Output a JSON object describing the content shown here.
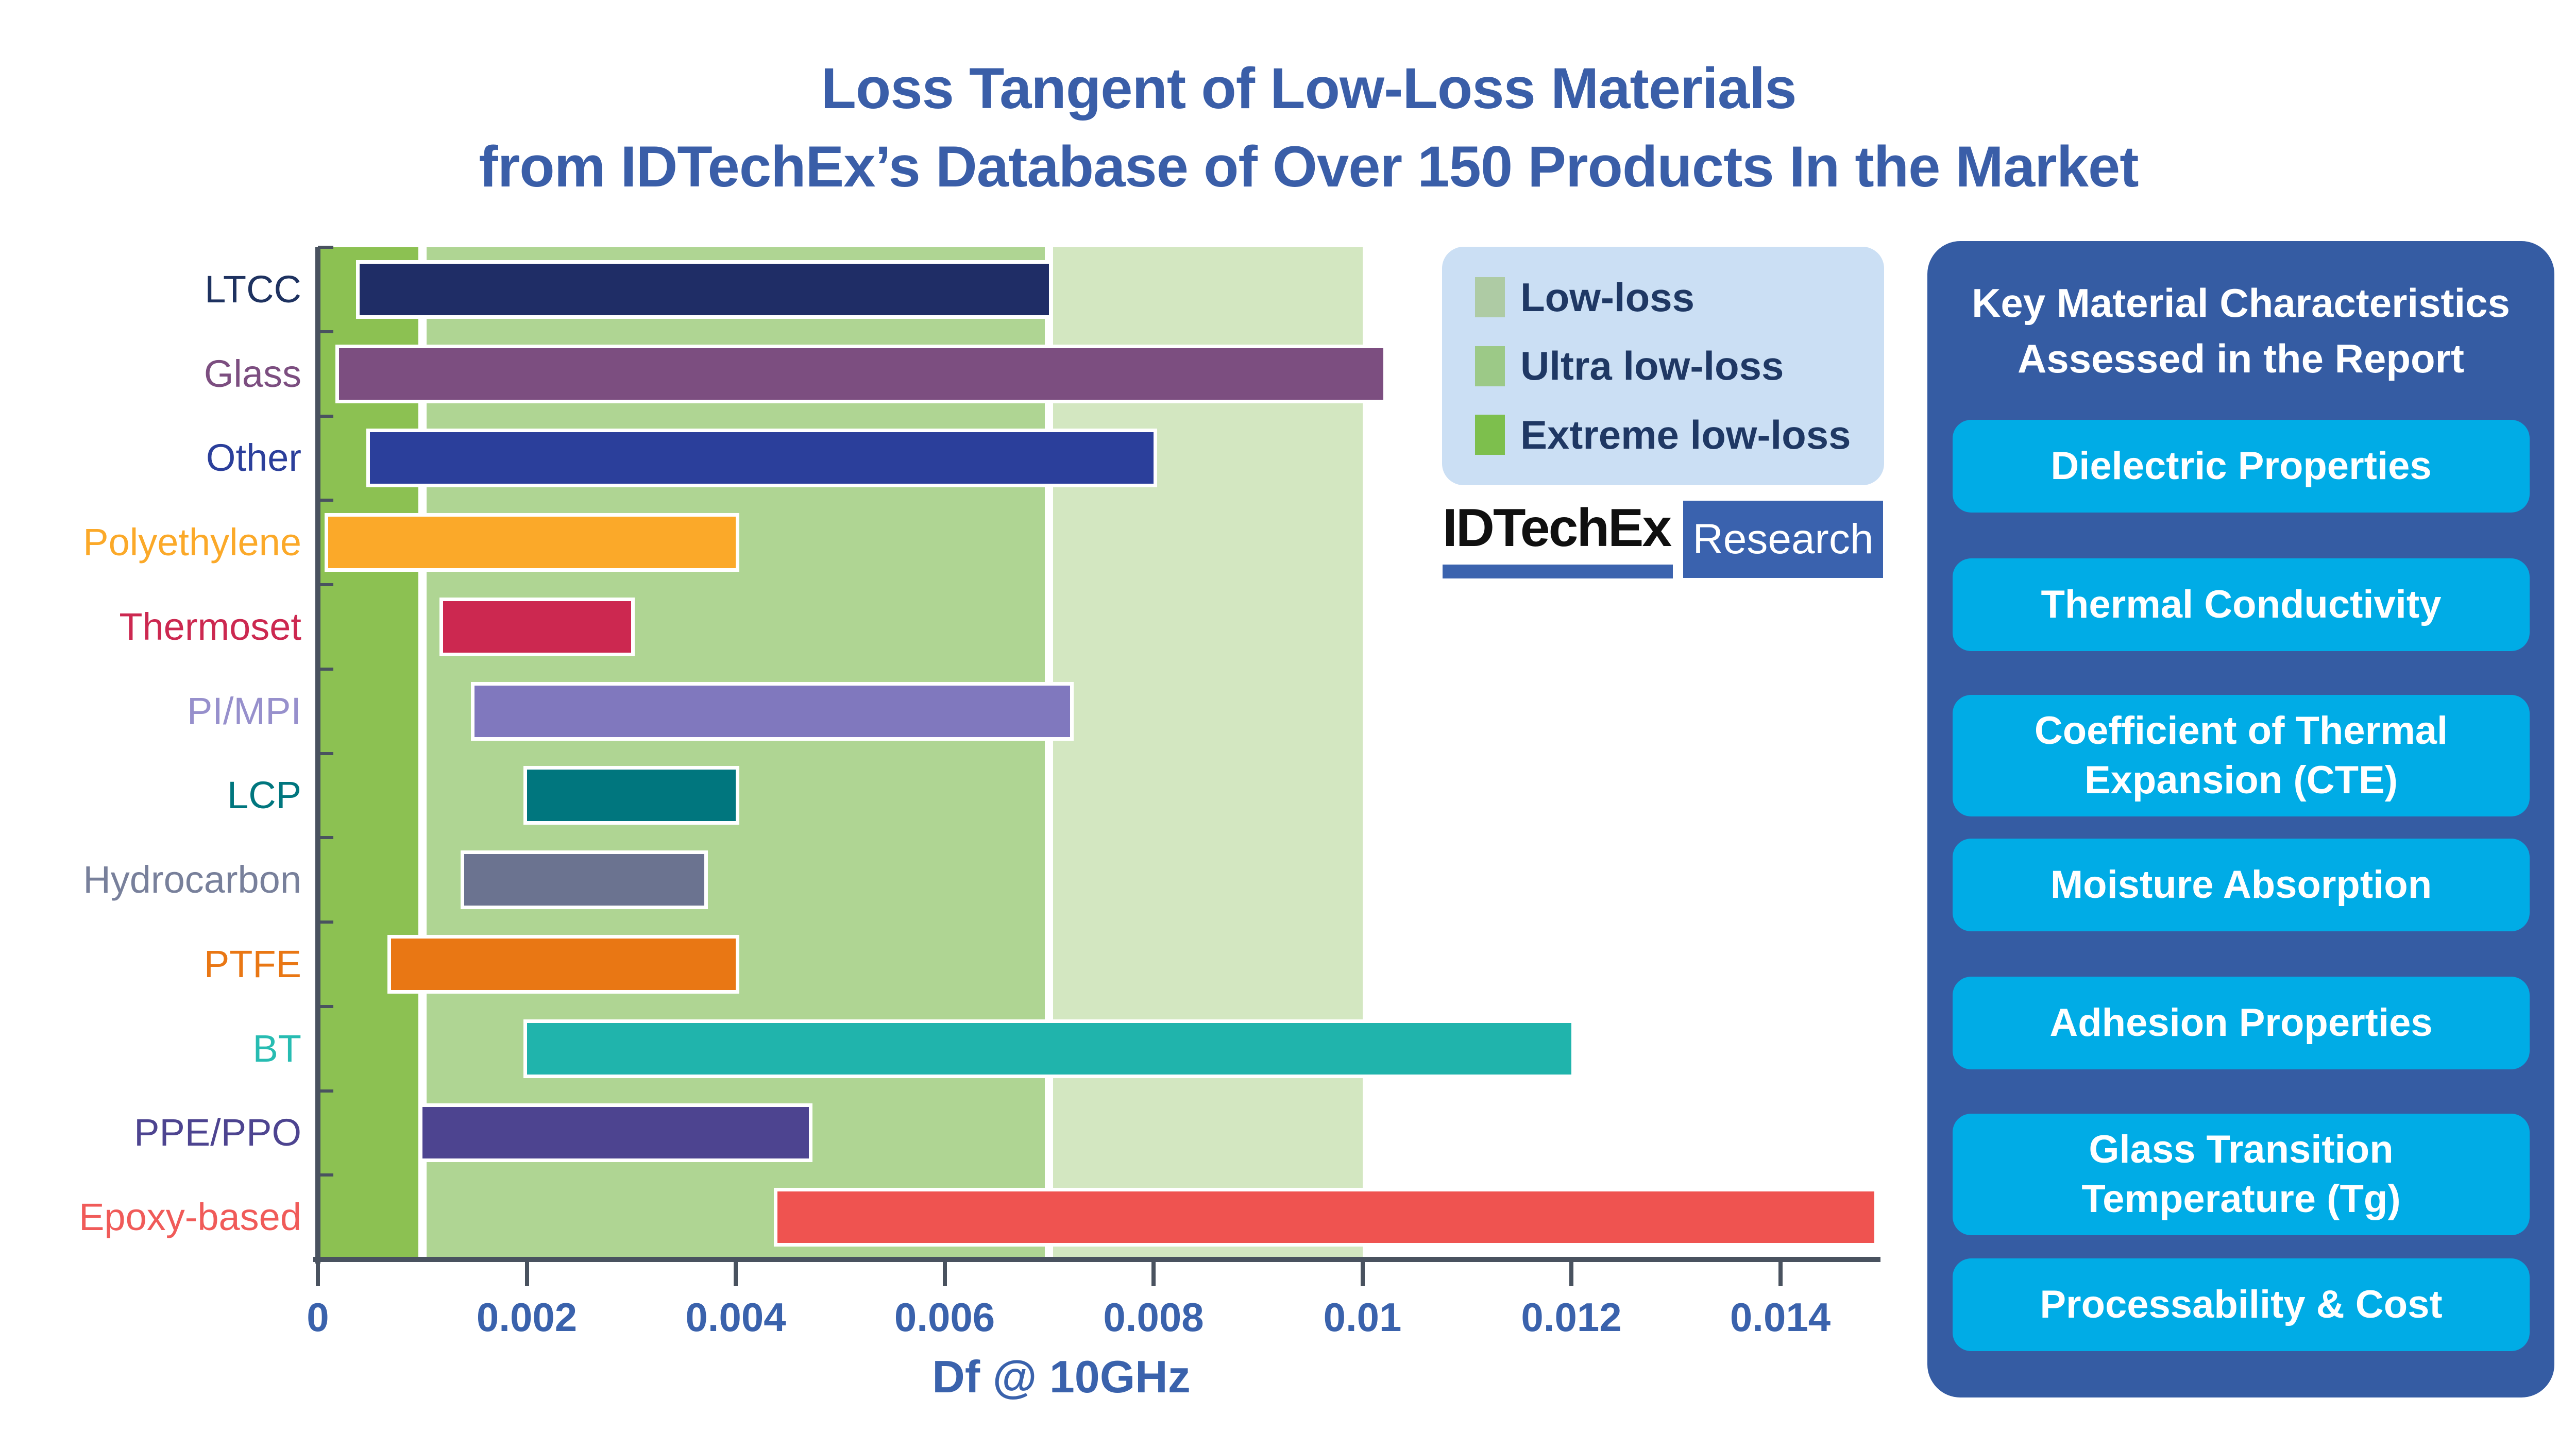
{
  "title": {
    "line1": "Loss Tangent of Low-Loss Materials",
    "line2": "from IDTechEx’s Database of Over 150 Products In the Market"
  },
  "chart_data": {
    "type": "bar",
    "orientation": "horizontal-range",
    "title": "Loss Tangent of Low-Loss Materials from IDTechEx’s Database of Over 150 Products In the Market",
    "xlabel": "Df @ 10GHz",
    "xlim": [
      0,
      0.015
    ],
    "grid": false,
    "x_ticks": [
      {
        "value": 0,
        "label": "0"
      },
      {
        "value": 0.002,
        "label": "0.002"
      },
      {
        "value": 0.004,
        "label": "0.004"
      },
      {
        "value": 0.006,
        "label": "0.006"
      },
      {
        "value": 0.008,
        "label": "0.008"
      },
      {
        "value": 0.01,
        "label": "0.01"
      },
      {
        "value": 0.012,
        "label": "0.012"
      },
      {
        "value": 0.014,
        "label": "0.014"
      }
    ],
    "bands": [
      {
        "name": "Extreme low-loss",
        "from": 0,
        "to": 0.001,
        "color": "#8CC152"
      },
      {
        "name": "Ultra low-loss",
        "from": 0.001,
        "to": 0.007,
        "color": "#AFD593"
      },
      {
        "name": "Low-loss",
        "from": 0.007,
        "to": 0.01,
        "color": "#D3E7C1"
      }
    ],
    "series": [
      {
        "material": "LTCC",
        "min": 0.0004,
        "max": 0.007,
        "bar_color": "#1F2D66",
        "label_color": "#1E3260"
      },
      {
        "material": "Glass",
        "min": 0.0002,
        "max": 0.0102,
        "bar_color": "#7C4E80",
        "label_color": "#7C4E80"
      },
      {
        "material": "Other",
        "min": 0.0005,
        "max": 0.008,
        "bar_color": "#2B3F9B",
        "label_color": "#2B3F9B"
      },
      {
        "material": "Polyethylene",
        "min": 0.0001,
        "max": 0.004,
        "bar_color": "#FBA929",
        "label_color": "#FBA929"
      },
      {
        "material": "Thermoset",
        "min": 0.0012,
        "max": 0.003,
        "bar_color": "#CC2850",
        "label_color": "#CC2850"
      },
      {
        "material": "PI/MPI",
        "min": 0.0015,
        "max": 0.0072,
        "bar_color": "#8078BE",
        "label_color": "#9790CC"
      },
      {
        "material": "LCP",
        "min": 0.002,
        "max": 0.004,
        "bar_color": "#00767E",
        "label_color": "#00767E"
      },
      {
        "material": "Hydrocarbon",
        "min": 0.0014,
        "max": 0.0037,
        "bar_color": "#6B7390",
        "label_color": "#78809B"
      },
      {
        "material": "PTFE",
        "min": 0.0007,
        "max": 0.004,
        "bar_color": "#E97714",
        "label_color": "#E97714"
      },
      {
        "material": "BT",
        "min": 0.002,
        "max": 0.012,
        "bar_color": "#20B4AC",
        "label_color": "#27BCB2"
      },
      {
        "material": "PPE/PPO",
        "min": 0.001,
        "max": 0.0047,
        "bar_color": "#4D4490",
        "label_color": "#4D4490"
      },
      {
        "material": "Epoxy-based",
        "min": 0.0044,
        "max": 0.0149,
        "bar_color": "#EF5350",
        "label_color": "#F05B59"
      }
    ]
  },
  "legend": {
    "items": [
      {
        "label": "Low-loss",
        "color": "#AECBA4"
      },
      {
        "label": "Ultra low-loss",
        "color": "#9CC987"
      },
      {
        "label": "Extreme low-loss",
        "color": "#7DBF4D"
      }
    ]
  },
  "logo": {
    "brand": "IDTechEx",
    "suffix": "Research"
  },
  "side_panel": {
    "title_line1": "Key Material Characteristics",
    "title_line2": "Assessed in the Report",
    "items": [
      {
        "lines": [
          "Dielectric Properties"
        ]
      },
      {
        "lines": [
          "Thermal Conductivity"
        ]
      },
      {
        "lines": [
          "Coefficient of Thermal",
          "Expansion (CTE)"
        ]
      },
      {
        "lines": [
          "Moisture Absorption"
        ]
      },
      {
        "lines": [
          "Adhesion Properties"
        ]
      },
      {
        "lines": [
          "Glass Transition",
          "Temperature (Tg)"
        ]
      },
      {
        "lines": [
          "Processability & Cost"
        ]
      }
    ]
  },
  "colors": {
    "title_text": "#3A5EA8",
    "axis": "#49525F",
    "tick_label": "#3A62AC",
    "xlabel": "#3A62AC",
    "legend_bg": "#CBDFF4",
    "legend_text": "#1F3864",
    "logo_underline": "#3B63AE",
    "logo_research_bg": "#3A62AE",
    "panel_bg": "#355CA3",
    "panel_item_bg": "#00ACE6"
  }
}
